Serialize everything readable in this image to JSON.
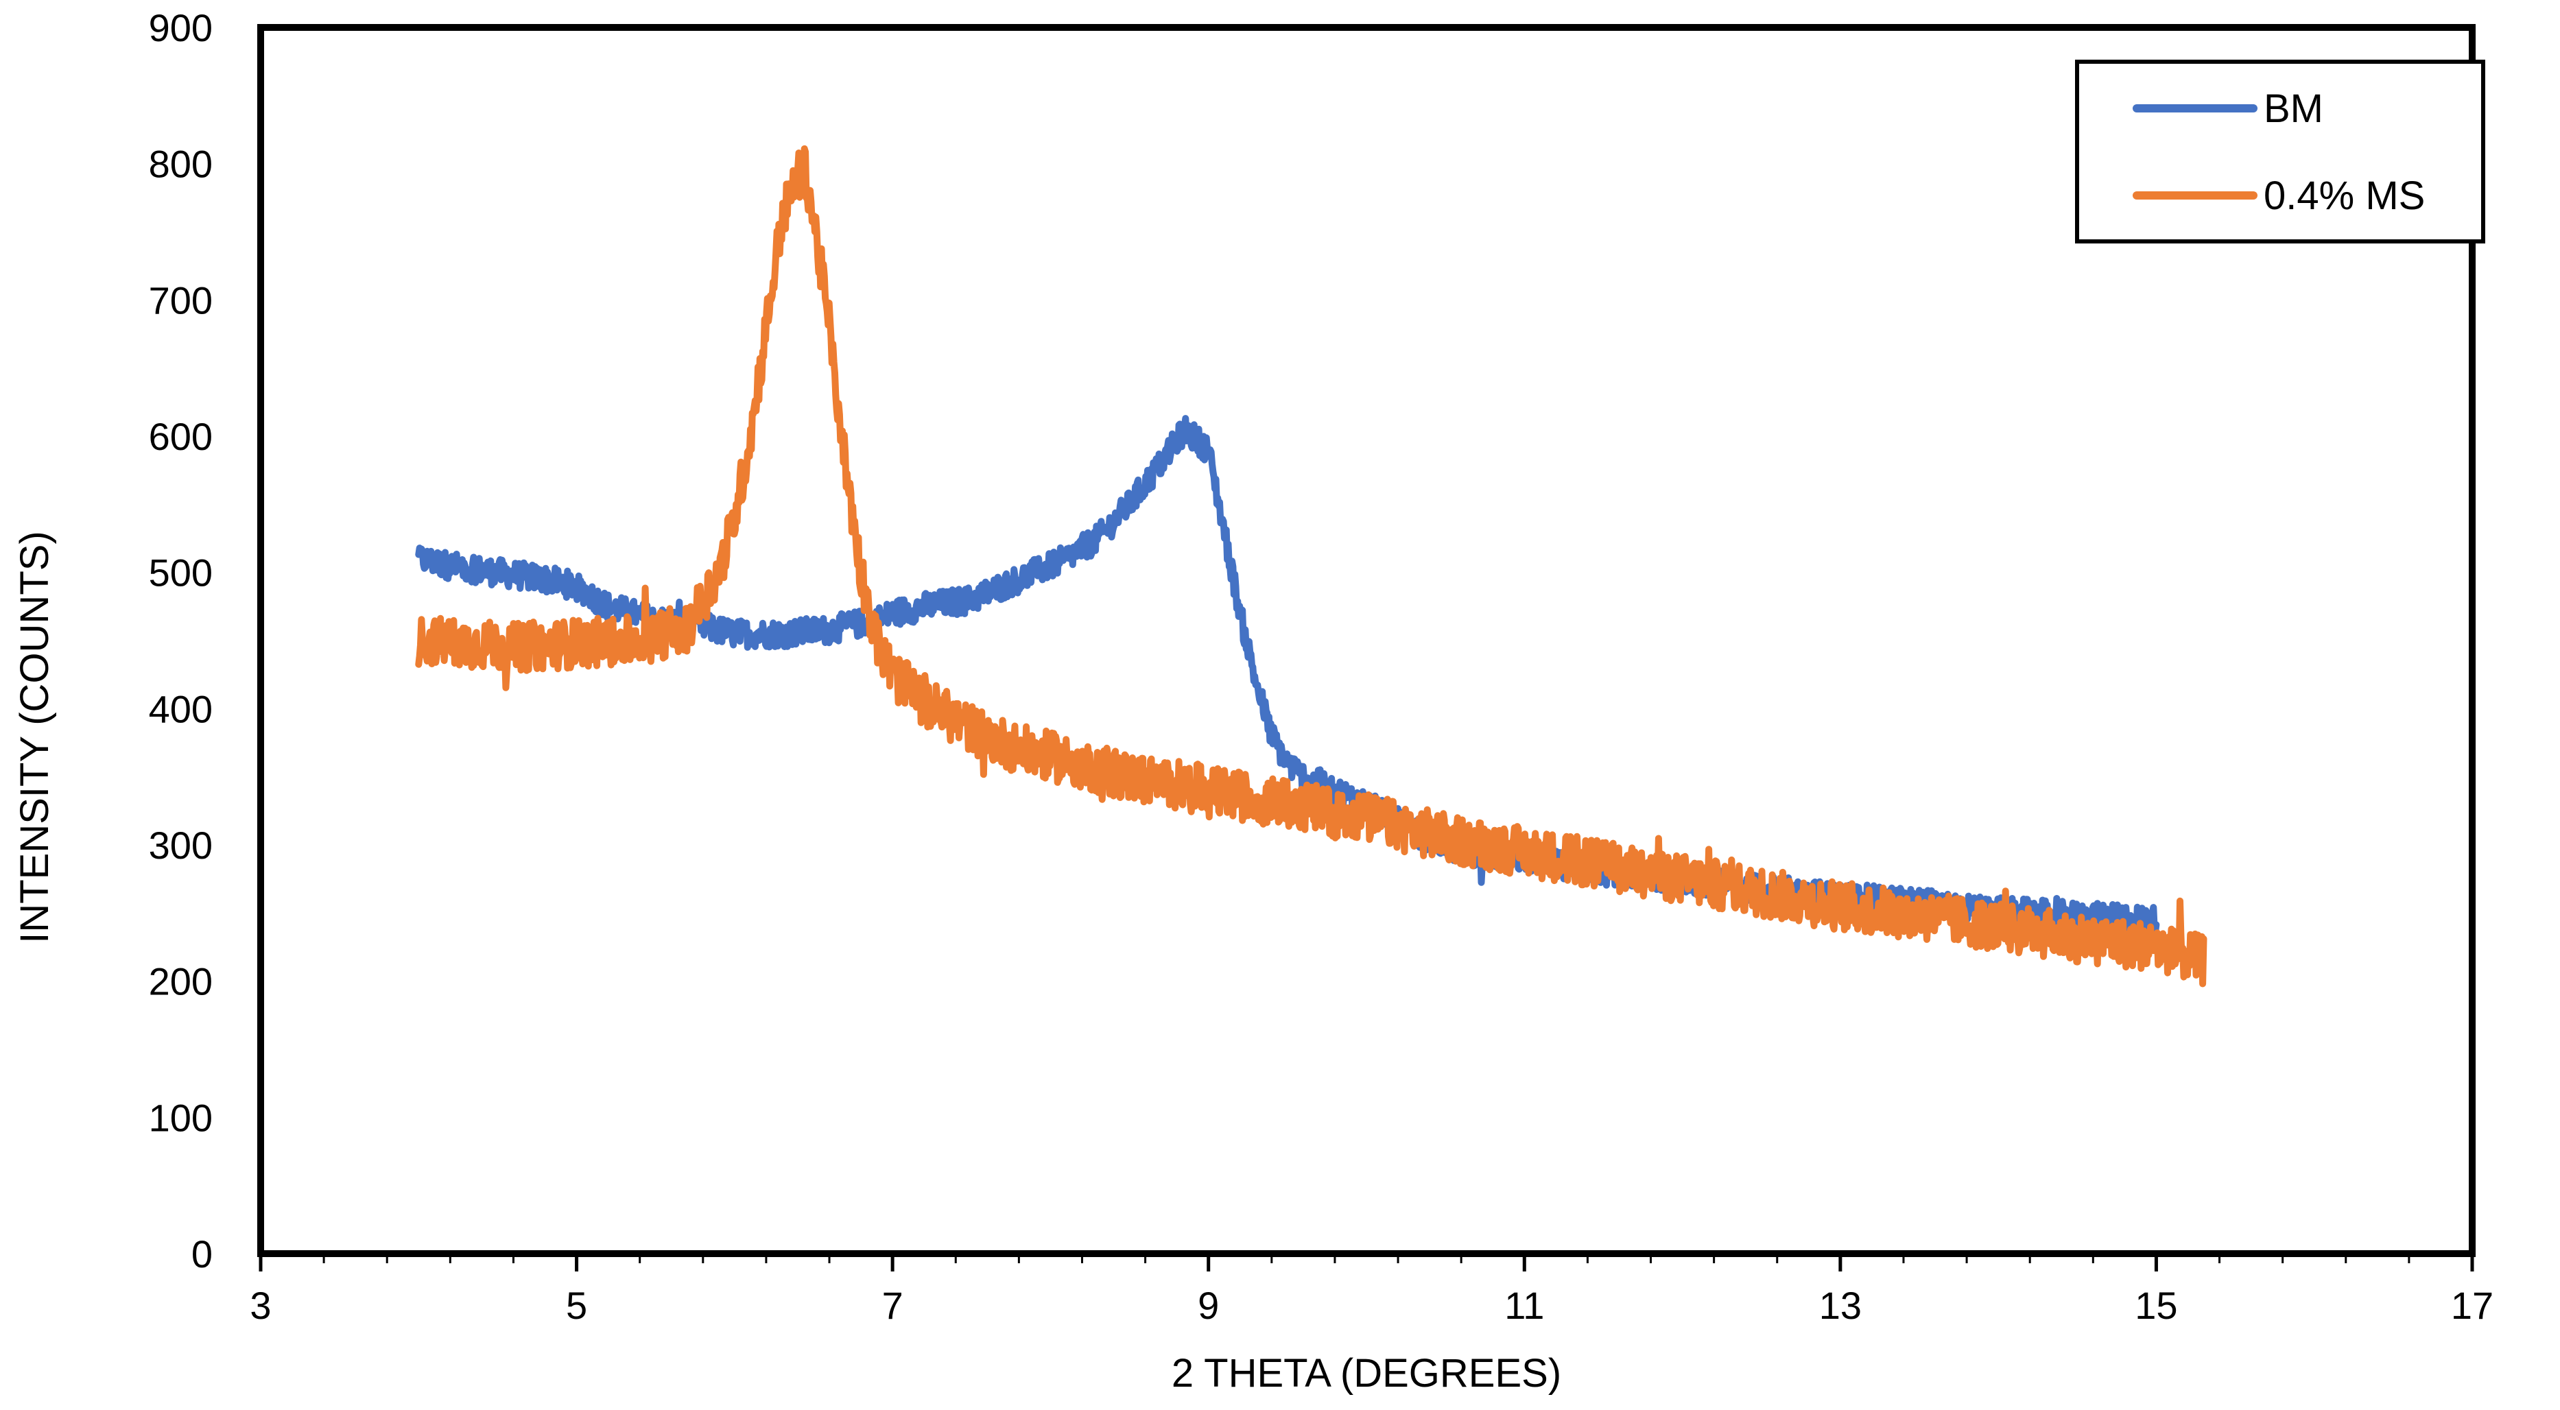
{
  "chart_data": {
    "type": "line",
    "title": "",
    "xlabel": "2 THETA (DEGREES)",
    "ylabel": "INTENSITY (COUNTS)",
    "xlim": [
      3,
      17
    ],
    "ylim": [
      0,
      900
    ],
    "xticks": [
      3,
      5,
      7,
      9,
      11,
      13,
      15,
      17
    ],
    "xticks_minor_step": 0.4,
    "yticks": [
      0,
      100,
      200,
      300,
      400,
      500,
      600,
      700,
      800,
      900
    ],
    "grid": false,
    "legend_position": "top-right",
    "series": [
      {
        "name": "BM",
        "color": "#4472C4",
        "noise": 10,
        "x": [
          4.0,
          4.2,
          4.5,
          4.8,
          5.0,
          5.2,
          5.5,
          5.8,
          6.0,
          6.3,
          6.6,
          6.9,
          7.0,
          7.2,
          7.5,
          7.7,
          7.9,
          8.1,
          8.3,
          8.5,
          8.7,
          8.85,
          9.0,
          9.1,
          9.2,
          9.3,
          9.4,
          9.5,
          9.6,
          9.8,
          10.0,
          10.3,
          10.6,
          11.0,
          11.5,
          12.0,
          12.5,
          13.0,
          13.5,
          14.0,
          14.5,
          15.0
        ],
        "y": [
          510,
          505,
          500,
          495,
          490,
          475,
          465,
          460,
          455,
          455,
          458,
          465,
          470,
          475,
          480,
          490,
          500,
          510,
          525,
          550,
          580,
          605,
          590,
          530,
          470,
          420,
          380,
          360,
          350,
          340,
          330,
          310,
          295,
          290,
          280,
          275,
          268,
          262,
          258,
          252,
          248,
          245
        ]
      },
      {
        "name": "0.4% MS",
        "color": "#ED7D31",
        "noise": 18,
        "x": [
          4.0,
          4.3,
          4.6,
          5.0,
          5.4,
          5.7,
          5.9,
          6.0,
          6.1,
          6.2,
          6.3,
          6.4,
          6.45,
          6.5,
          6.6,
          6.7,
          6.8,
          6.9,
          7.0,
          7.2,
          7.5,
          7.8,
          8.0,
          8.5,
          9.0,
          9.5,
          10.0,
          10.5,
          11.0,
          11.5,
          12.0,
          12.5,
          13.0,
          13.5,
          14.0,
          14.5,
          15.0,
          15.3
        ],
        "y": [
          450,
          448,
          445,
          448,
          450,
          460,
          500,
          540,
          600,
          680,
          760,
          790,
          795,
          760,
          680,
          580,
          500,
          450,
          425,
          405,
          385,
          370,
          365,
          350,
          340,
          330,
          320,
          305,
          295,
          285,
          275,
          265,
          255,
          248,
          240,
          232,
          225,
          215
        ]
      }
    ]
  }
}
